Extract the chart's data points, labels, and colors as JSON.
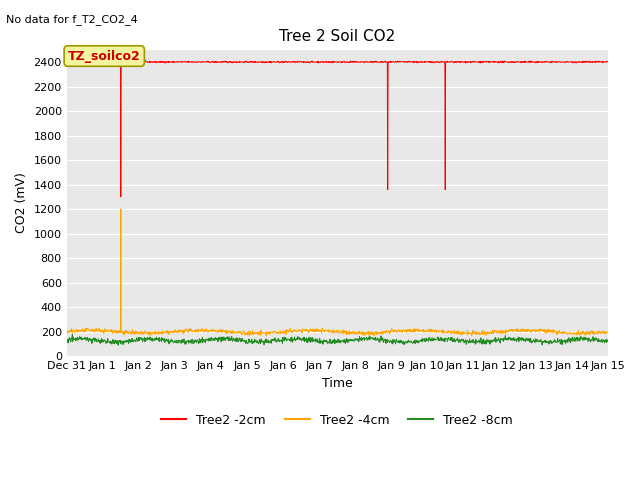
{
  "title": "Tree 2 Soil CO2",
  "no_data_text": "No data for f_T2_CO2_4",
  "xlabel": "Time",
  "ylabel": "CO2 (mV)",
  "ylim": [
    0,
    2500
  ],
  "background_color": "#e8e8e8",
  "annotation_text": "TZ_soilco2",
  "annotation_box_color": "#f5f5a0",
  "annotation_box_edge": "#999900",
  "x_tick_labels": [
    "Dec 31",
    "Jan 1",
    "Jan 2",
    "Jan 3",
    "Jan 4",
    "Jan 5",
    "Jan 6",
    "Jan 7",
    "Jan 8",
    "Jan 9",
    "Jan 10",
    "Jan 11",
    "Jan 12",
    "Jan 13",
    "Jan 14",
    "Jan 15"
  ],
  "legend_labels": [
    "Tree2 -2cm",
    "Tree2 -4cm",
    "Tree2 -8cm"
  ],
  "legend_colors": [
    "#ff0000",
    "#ffa500",
    "#228B22"
  ],
  "line_colors": [
    "#ff0000",
    "#ffa500",
    "#228B22"
  ],
  "yticks": [
    0,
    200,
    400,
    600,
    800,
    1000,
    1200,
    1400,
    1600,
    1800,
    2000,
    2200,
    2400
  ],
  "figsize": [
    6.4,
    4.8
  ],
  "dpi": 100,
  "title_fontsize": 11,
  "label_fontsize": 9,
  "tick_fontsize": 8,
  "legend_fontsize": 9
}
